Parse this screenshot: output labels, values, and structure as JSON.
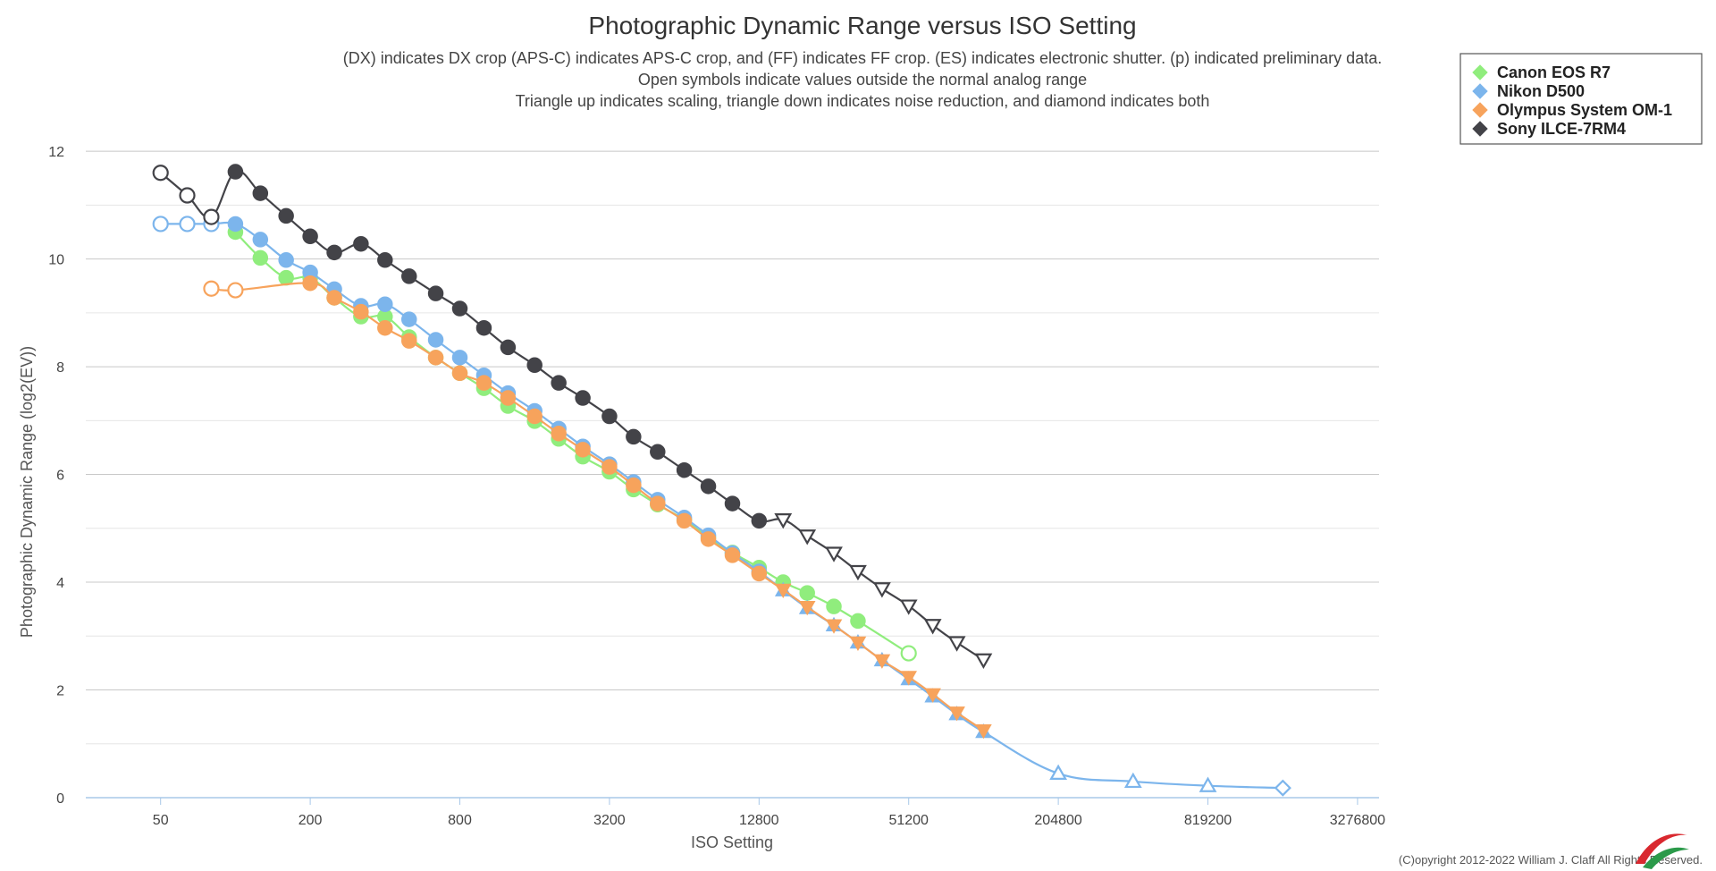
{
  "chart_data": {
    "type": "line",
    "title": "Photographic Dynamic Range versus ISO Setting",
    "subtitles": [
      "(DX) indicates DX crop (APS-C) indicates APS-C crop, and (FF) indicates FF crop. (ES) indicates electronic shutter. (p) indicated preliminary data.",
      "Open symbols indicate values outside the normal analog range",
      "Triangle up indicates scaling, triangle down indicates noise reduction, and diamond indicates both"
    ],
    "xlabel": "ISO Setting",
    "ylabel": "Photographic Dynamic Range (log2(EV))",
    "x_scale": "log2",
    "xlim": [
      25,
      4000000
    ],
    "ylim": [
      0,
      12.5
    ],
    "x_ticks": [
      50,
      200,
      800,
      3200,
      12800,
      51200,
      204800,
      819200,
      3276800
    ],
    "x_tick_labels": [
      "50",
      "200",
      "800",
      "3200",
      "12800",
      "51200",
      "204800",
      "819200",
      "3276800"
    ],
    "y_ticks": [
      0,
      2,
      4,
      6,
      8,
      10,
      12
    ],
    "y_tick_labels": [
      "0",
      "2",
      "4",
      "6",
      "8",
      "10",
      "12"
    ],
    "legend_position": "top-right",
    "series": [
      {
        "name": "Canon EOS R7",
        "color": "#90ed7d",
        "points": [
          {
            "x": 100,
            "y": 10.5,
            "m": "circle"
          },
          {
            "x": 126,
            "y": 10.02,
            "m": "circle"
          },
          {
            "x": 160,
            "y": 9.65,
            "m": "circle"
          },
          {
            "x": 200,
            "y": 9.65,
            "m": "circle"
          },
          {
            "x": 250,
            "y": 9.28,
            "m": "circle"
          },
          {
            "x": 320,
            "y": 8.93,
            "m": "circle"
          },
          {
            "x": 400,
            "y": 8.93,
            "m": "circle"
          },
          {
            "x": 500,
            "y": 8.55,
            "m": "circle"
          },
          {
            "x": 640,
            "y": 8.17,
            "m": "circle"
          },
          {
            "x": 800,
            "y": 7.88,
            "m": "circle"
          },
          {
            "x": 1000,
            "y": 7.6,
            "m": "circle"
          },
          {
            "x": 1250,
            "y": 7.27,
            "m": "circle"
          },
          {
            "x": 1600,
            "y": 6.99,
            "m": "circle"
          },
          {
            "x": 2000,
            "y": 6.66,
            "m": "circle"
          },
          {
            "x": 2500,
            "y": 6.33,
            "m": "circle"
          },
          {
            "x": 3200,
            "y": 6.05,
            "m": "circle"
          },
          {
            "x": 4000,
            "y": 5.72,
            "m": "circle"
          },
          {
            "x": 5000,
            "y": 5.44,
            "m": "circle"
          },
          {
            "x": 6400,
            "y": 5.16,
            "m": "circle"
          },
          {
            "x": 8000,
            "y": 4.83,
            "m": "circle"
          },
          {
            "x": 10000,
            "y": 4.55,
            "m": "circle"
          },
          {
            "x": 12800,
            "y": 4.27,
            "m": "circle"
          },
          {
            "x": 16000,
            "y": 4.0,
            "m": "circle"
          },
          {
            "x": 20000,
            "y": 3.8,
            "m": "circle"
          },
          {
            "x": 25600,
            "y": 3.55,
            "m": "circle"
          },
          {
            "x": 32000,
            "y": 3.28,
            "m": "circle"
          },
          {
            "x": 51200,
            "y": 2.68,
            "m": "circle-open"
          }
        ]
      },
      {
        "name": "Nikon D500",
        "color": "#7cb5ec",
        "points": [
          {
            "x": 50,
            "y": 10.65,
            "m": "circle-open"
          },
          {
            "x": 64,
            "y": 10.65,
            "m": "circle-open"
          },
          {
            "x": 80,
            "y": 10.65,
            "m": "circle-open"
          },
          {
            "x": 100,
            "y": 10.65,
            "m": "circle"
          },
          {
            "x": 126,
            "y": 10.36,
            "m": "circle"
          },
          {
            "x": 160,
            "y": 9.98,
            "m": "circle"
          },
          {
            "x": 200,
            "y": 9.75,
            "m": "circle"
          },
          {
            "x": 250,
            "y": 9.44,
            "m": "circle"
          },
          {
            "x": 320,
            "y": 9.13,
            "m": "circle"
          },
          {
            "x": 400,
            "y": 9.16,
            "m": "circle"
          },
          {
            "x": 500,
            "y": 8.88,
            "m": "circle"
          },
          {
            "x": 640,
            "y": 8.5,
            "m": "circle"
          },
          {
            "x": 800,
            "y": 8.17,
            "m": "circle"
          },
          {
            "x": 1000,
            "y": 7.84,
            "m": "circle"
          },
          {
            "x": 1250,
            "y": 7.51,
            "m": "circle"
          },
          {
            "x": 1600,
            "y": 7.18,
            "m": "circle"
          },
          {
            "x": 2000,
            "y": 6.85,
            "m": "circle"
          },
          {
            "x": 2500,
            "y": 6.52,
            "m": "circle"
          },
          {
            "x": 3200,
            "y": 6.19,
            "m": "circle"
          },
          {
            "x": 4000,
            "y": 5.86,
            "m": "circle"
          },
          {
            "x": 5000,
            "y": 5.53,
            "m": "circle"
          },
          {
            "x": 6400,
            "y": 5.2,
            "m": "circle"
          },
          {
            "x": 8000,
            "y": 4.87,
            "m": "circle"
          },
          {
            "x": 10000,
            "y": 4.54,
            "m": "circle"
          },
          {
            "x": 12800,
            "y": 4.2,
            "m": "circle"
          },
          {
            "x": 16000,
            "y": 3.85,
            "m": "triangle-up"
          },
          {
            "x": 20000,
            "y": 3.52,
            "m": "triangle-up"
          },
          {
            "x": 25600,
            "y": 3.2,
            "m": "triangle-up"
          },
          {
            "x": 32000,
            "y": 2.88,
            "m": "triangle-up"
          },
          {
            "x": 40000,
            "y": 2.55,
            "m": "triangle-up"
          },
          {
            "x": 51200,
            "y": 2.2,
            "m": "triangle-up"
          },
          {
            "x": 64000,
            "y": 1.88,
            "m": "triangle-up"
          },
          {
            "x": 80000,
            "y": 1.55,
            "m": "triangle-up"
          },
          {
            "x": 102400,
            "y": 1.22,
            "m": "triangle-up"
          },
          {
            "x": 204800,
            "y": 0.45,
            "m": "triangle-up-open"
          },
          {
            "x": 409600,
            "y": 0.3,
            "m": "triangle-up-open"
          },
          {
            "x": 819200,
            "y": 0.22,
            "m": "triangle-up-open"
          },
          {
            "x": 1640000,
            "y": 0.18,
            "m": "diamond-open"
          }
        ]
      },
      {
        "name": "Olympus System OM-1",
        "color": "#f7a35c",
        "points": [
          {
            "x": 80,
            "y": 9.45,
            "m": "circle-open"
          },
          {
            "x": 100,
            "y": 9.42,
            "m": "circle-open"
          },
          {
            "x": 200,
            "y": 9.55,
            "m": "circle"
          },
          {
            "x": 250,
            "y": 9.28,
            "m": "circle"
          },
          {
            "x": 320,
            "y": 9.02,
            "m": "circle"
          },
          {
            "x": 400,
            "y": 8.72,
            "m": "circle"
          },
          {
            "x": 500,
            "y": 8.48,
            "m": "circle"
          },
          {
            "x": 640,
            "y": 8.17,
            "m": "circle"
          },
          {
            "x": 800,
            "y": 7.88,
            "m": "circle"
          },
          {
            "x": 1000,
            "y": 7.7,
            "m": "circle"
          },
          {
            "x": 1250,
            "y": 7.42,
            "m": "circle"
          },
          {
            "x": 1600,
            "y": 7.08,
            "m": "circle"
          },
          {
            "x": 2000,
            "y": 6.76,
            "m": "circle"
          },
          {
            "x": 2500,
            "y": 6.46,
            "m": "circle"
          },
          {
            "x": 3200,
            "y": 6.14,
            "m": "circle"
          },
          {
            "x": 4000,
            "y": 5.8,
            "m": "circle"
          },
          {
            "x": 5000,
            "y": 5.46,
            "m": "circle"
          },
          {
            "x": 6400,
            "y": 5.14,
            "m": "circle"
          },
          {
            "x": 8000,
            "y": 4.8,
            "m": "circle"
          },
          {
            "x": 10000,
            "y": 4.5,
            "m": "circle"
          },
          {
            "x": 12800,
            "y": 4.16,
            "m": "circle"
          },
          {
            "x": 16000,
            "y": 3.86,
            "m": "triangle-down"
          },
          {
            "x": 20000,
            "y": 3.54,
            "m": "triangle-down"
          },
          {
            "x": 25600,
            "y": 3.2,
            "m": "triangle-down"
          },
          {
            "x": 32000,
            "y": 2.88,
            "m": "triangle-down"
          },
          {
            "x": 40000,
            "y": 2.55,
            "m": "triangle-down"
          },
          {
            "x": 51200,
            "y": 2.24,
            "m": "triangle-down"
          },
          {
            "x": 64000,
            "y": 1.92,
            "m": "triangle-down"
          },
          {
            "x": 80000,
            "y": 1.58,
            "m": "triangle-down"
          },
          {
            "x": 102400,
            "y": 1.25,
            "m": "triangle-down"
          }
        ]
      },
      {
        "name": "Sony ILCE-7RM4",
        "color": "#434348",
        "points": [
          {
            "x": 50,
            "y": 11.6,
            "m": "circle-open"
          },
          {
            "x": 64,
            "y": 11.18,
            "m": "circle-open"
          },
          {
            "x": 80,
            "y": 10.78,
            "m": "circle-open"
          },
          {
            "x": 100,
            "y": 11.62,
            "m": "circle"
          },
          {
            "x": 126,
            "y": 11.22,
            "m": "circle"
          },
          {
            "x": 160,
            "y": 10.8,
            "m": "circle"
          },
          {
            "x": 200,
            "y": 10.42,
            "m": "circle"
          },
          {
            "x": 250,
            "y": 10.12,
            "m": "circle"
          },
          {
            "x": 320,
            "y": 10.28,
            "m": "circle"
          },
          {
            "x": 400,
            "y": 9.98,
            "m": "circle"
          },
          {
            "x": 500,
            "y": 9.68,
            "m": "circle"
          },
          {
            "x": 640,
            "y": 9.36,
            "m": "circle"
          },
          {
            "x": 800,
            "y": 9.08,
            "m": "circle"
          },
          {
            "x": 1000,
            "y": 8.72,
            "m": "circle"
          },
          {
            "x": 1250,
            "y": 8.36,
            "m": "circle"
          },
          {
            "x": 1600,
            "y": 8.03,
            "m": "circle"
          },
          {
            "x": 2000,
            "y": 7.7,
            "m": "circle"
          },
          {
            "x": 2500,
            "y": 7.42,
            "m": "circle"
          },
          {
            "x": 3200,
            "y": 7.08,
            "m": "circle"
          },
          {
            "x": 4000,
            "y": 6.7,
            "m": "circle"
          },
          {
            "x": 5000,
            "y": 6.42,
            "m": "circle"
          },
          {
            "x": 6400,
            "y": 6.08,
            "m": "circle"
          },
          {
            "x": 8000,
            "y": 5.78,
            "m": "circle"
          },
          {
            "x": 10000,
            "y": 5.46,
            "m": "circle"
          },
          {
            "x": 12800,
            "y": 5.14,
            "m": "circle"
          },
          {
            "x": 16000,
            "y": 5.16,
            "m": "triangle-down-open"
          },
          {
            "x": 20000,
            "y": 4.86,
            "m": "triangle-down-open"
          },
          {
            "x": 25600,
            "y": 4.54,
            "m": "triangle-down-open"
          },
          {
            "x": 32000,
            "y": 4.2,
            "m": "triangle-down-open"
          },
          {
            "x": 40000,
            "y": 3.88,
            "m": "triangle-down-open"
          },
          {
            "x": 51200,
            "y": 3.56,
            "m": "triangle-down-open"
          },
          {
            "x": 64000,
            "y": 3.2,
            "m": "triangle-down-open"
          },
          {
            "x": 80000,
            "y": 2.88,
            "m": "triangle-down-open"
          },
          {
            "x": 102400,
            "y": 2.56,
            "m": "triangle-down-open"
          }
        ]
      }
    ]
  },
  "copyright": "(C)opyright 2012-2022 William J. Claff All Rights Reserved."
}
